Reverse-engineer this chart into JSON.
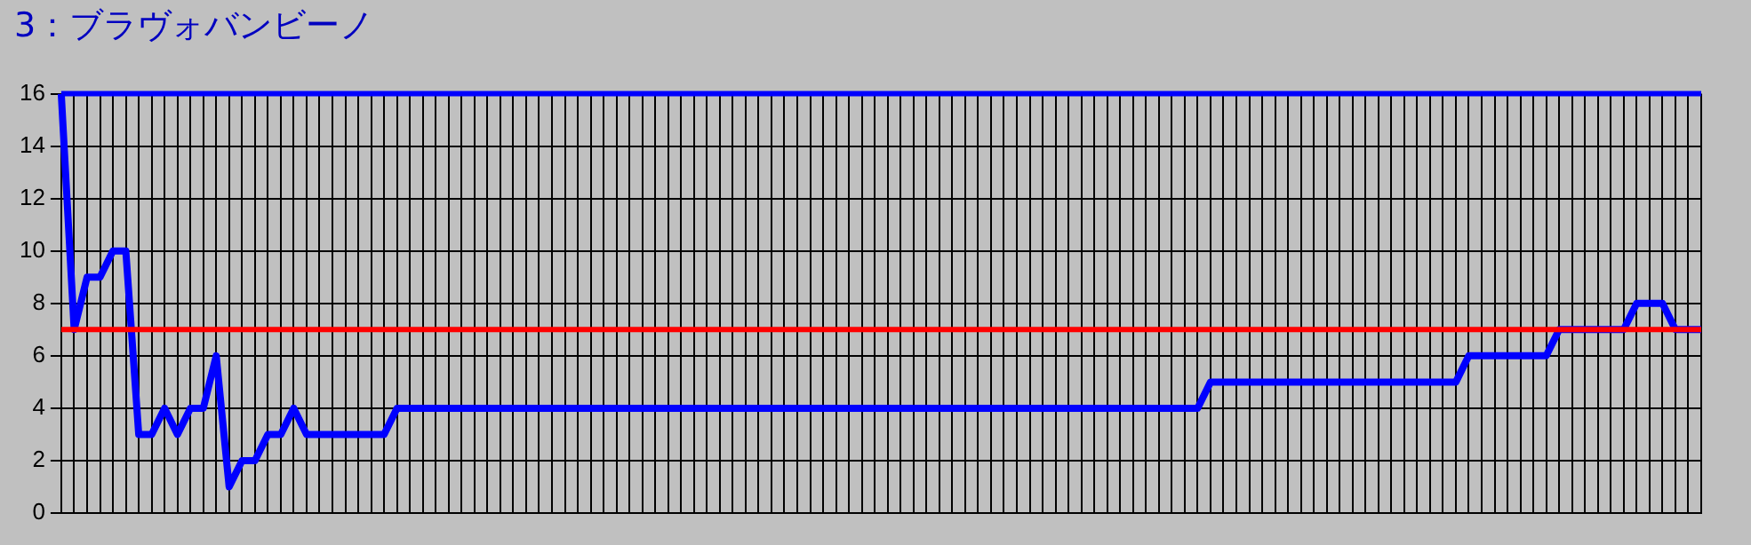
{
  "chart_data": {
    "type": "line",
    "title": "3：ブラヴォバンビーノ",
    "categories": [
      null,
      null,
      null,
      null,
      null,
      null,
      null,
      null,
      null,
      null,
      null,
      null,
      null,
      null,
      null,
      null,
      null,
      null,
      null,
      null,
      null,
      null,
      null,
      null,
      null,
      null,
      null,
      null,
      null,
      null,
      null,
      null,
      null,
      null,
      null,
      null,
      null,
      null,
      null,
      null,
      null,
      null,
      null,
      null,
      null,
      null,
      null,
      null,
      null,
      null,
      null,
      null,
      null,
      null,
      null,
      null,
      null,
      null,
      null,
      null,
      null,
      null,
      null,
      null,
      null,
      null,
      null,
      null,
      null,
      null,
      null,
      null,
      null,
      null,
      null,
      null,
      null,
      null,
      null,
      null,
      null,
      null,
      null,
      null,
      null,
      null,
      null,
      null,
      null,
      null,
      null,
      null,
      null,
      null,
      null,
      null,
      null,
      null,
      null,
      null,
      null,
      null,
      null,
      null,
      null,
      null,
      null,
      null,
      null,
      null,
      null,
      null,
      null,
      null,
      null,
      null,
      null,
      null,
      null,
      null,
      null,
      null,
      null,
      null,
      null,
      null,
      null,
      null
    ],
    "series": [
      {
        "color": "#0000ff",
        "values": [
          16,
          7,
          9,
          9,
          10,
          10,
          3,
          3,
          4,
          3,
          4,
          4,
          6,
          1,
          2,
          2,
          3,
          3,
          4,
          3,
          3,
          3,
          3,
          3,
          3,
          3,
          4,
          4,
          4,
          4,
          4,
          4,
          4,
          4,
          4,
          4,
          4,
          4,
          4,
          4,
          4,
          4,
          4,
          4,
          4,
          4,
          4,
          4,
          4,
          4,
          4,
          4,
          4,
          4,
          4,
          4,
          4,
          4,
          4,
          4,
          4,
          4,
          4,
          4,
          4,
          4,
          4,
          4,
          4,
          4,
          4,
          4,
          4,
          4,
          4,
          4,
          4,
          4,
          4,
          4,
          4,
          4,
          4,
          4,
          4,
          4,
          4,
          4,
          4,
          5,
          5,
          5,
          5,
          5,
          5,
          5,
          5,
          5,
          5,
          5,
          5,
          5,
          5,
          5,
          5,
          5,
          5,
          5,
          5,
          6,
          6,
          6,
          6,
          6,
          6,
          6,
          7,
          7,
          7,
          7,
          7,
          7,
          8,
          8,
          8,
          7,
          7,
          7
        ]
      }
    ],
    "ref_lines": [
      {
        "axis": "y",
        "value": 7,
        "color": "#ff0000"
      },
      {
        "axis": "y",
        "value": 16,
        "color": "#0000ff"
      }
    ],
    "ylim": [
      0,
      16
    ],
    "yticks": [
      0,
      2,
      4,
      6,
      8,
      10,
      12,
      14,
      16
    ],
    "grid": true,
    "legend": false,
    "marker": "none",
    "line_style": "solid"
  }
}
